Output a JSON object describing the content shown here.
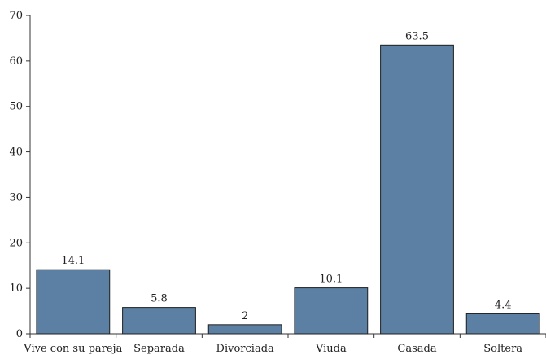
{
  "chart_data": {
    "type": "bar",
    "categories": [
      "Vive con su pareja",
      "Separada",
      "Divorciada",
      "Viuda",
      "Casada",
      "Soltera"
    ],
    "values": [
      14.1,
      5.8,
      2,
      10.1,
      63.5,
      4.4
    ],
    "value_labels": [
      "14.1",
      "5.8",
      "2",
      "10.1",
      "63.5",
      "4.4"
    ],
    "title": "",
    "xlabel": "",
    "ylabel": "",
    "ylim": [
      0,
      70
    ],
    "yticks": [
      0,
      10,
      20,
      30,
      40,
      50,
      60,
      70
    ],
    "grid": false,
    "bar_color": "#5b80a3",
    "bar_edge_color": "#1f1f1f",
    "axis_color": "#333333"
  }
}
